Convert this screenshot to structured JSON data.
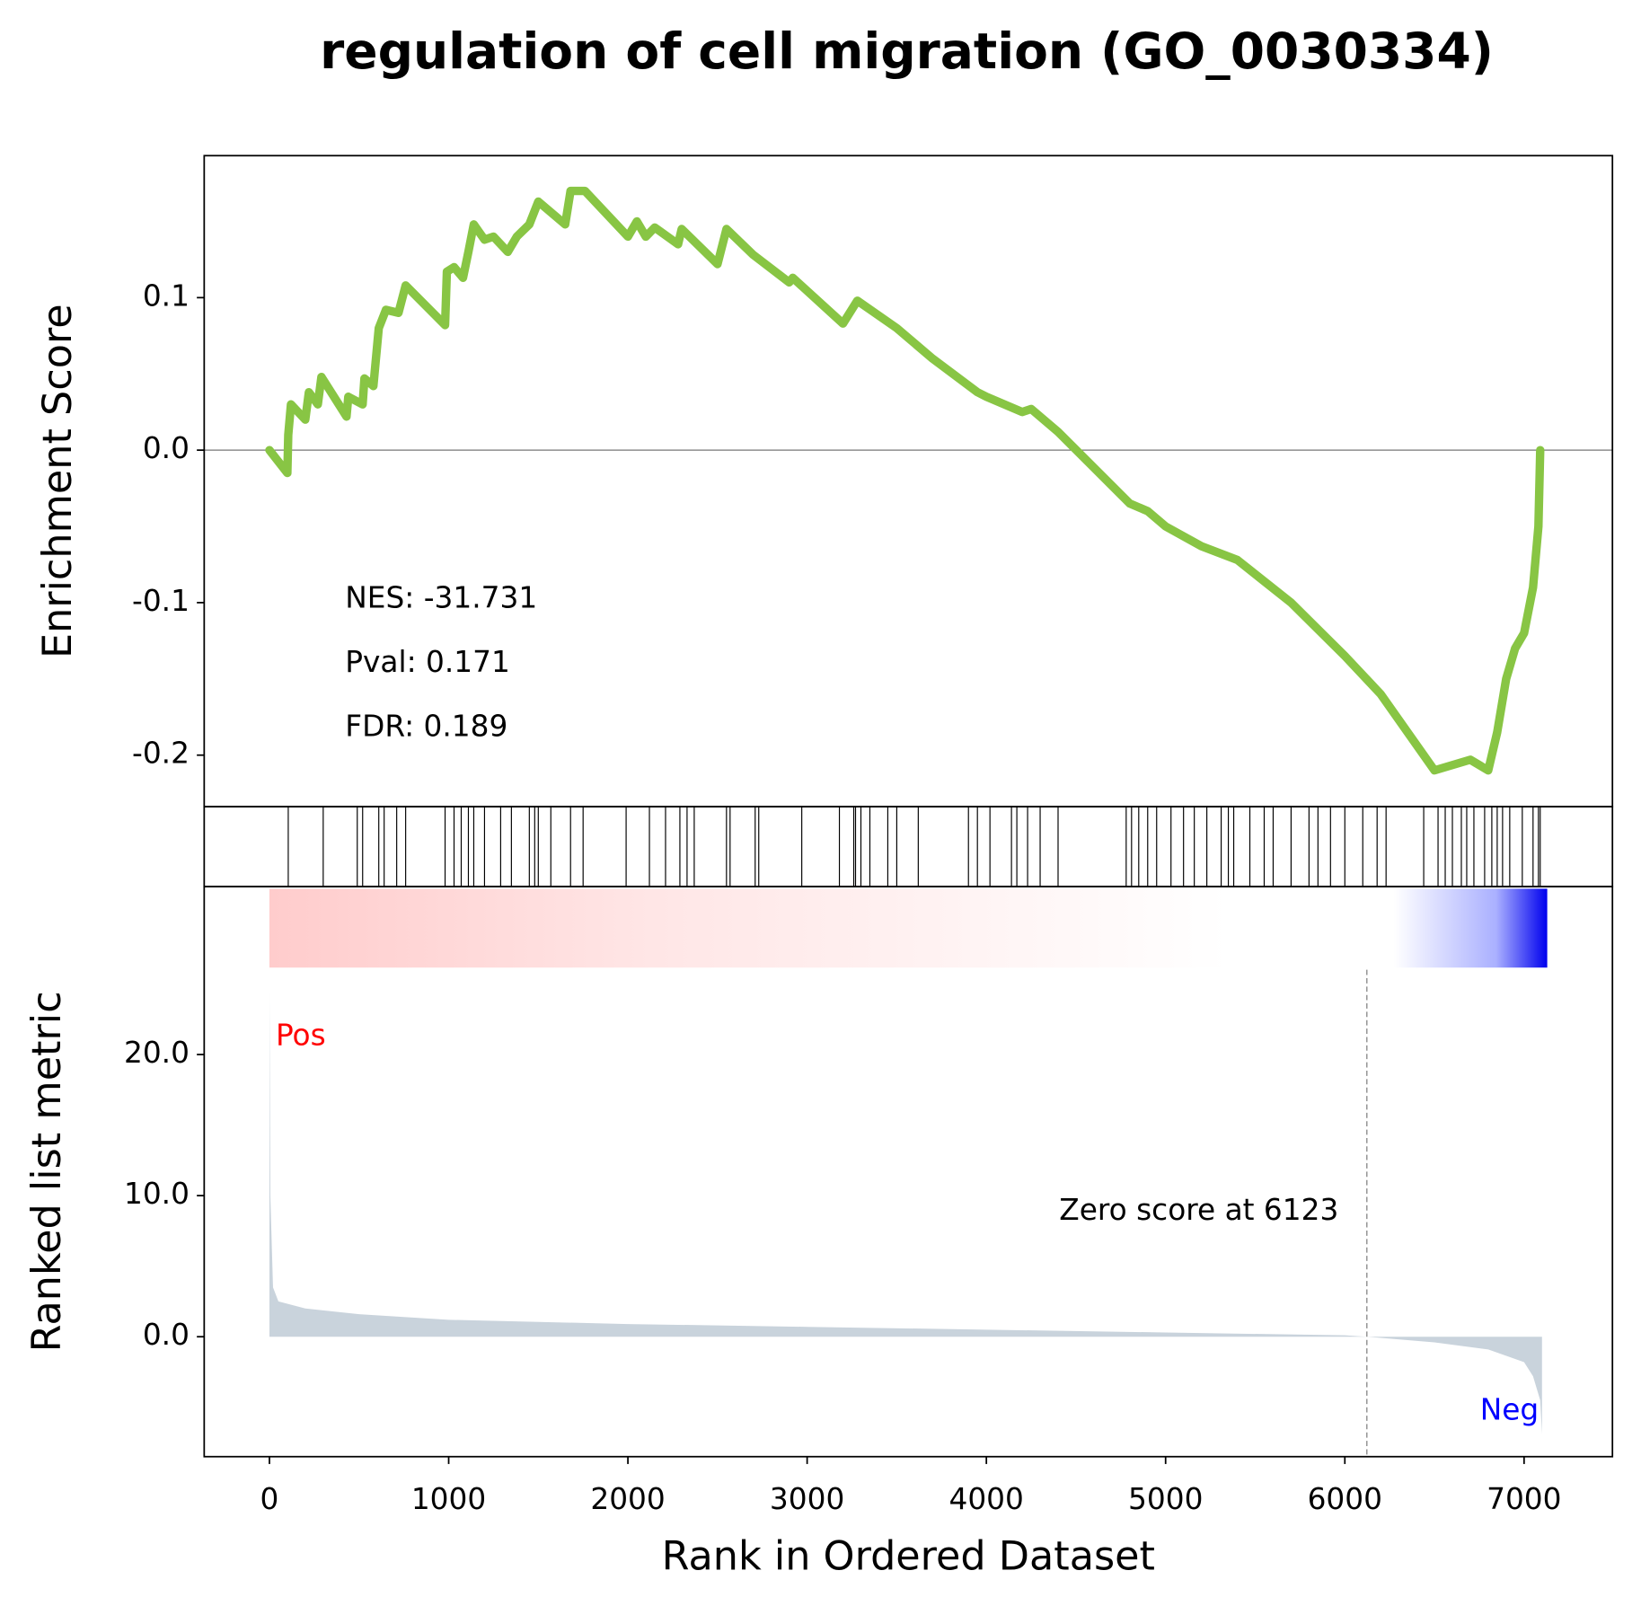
{
  "chart_data": [
    {
      "type": "line",
      "title": "regulation of cell migration (GO_0030334)",
      "ylabel": "Enrichment Score",
      "color": "#88c544",
      "annotations": [
        "NES: -31.731",
        "Pval: 0.171",
        "FDR: 0.189"
      ],
      "xlim": [
        -364,
        7493
      ],
      "ylim": [
        -0.2338,
        0.1931
      ],
      "yticks": [
        -0.2,
        -0.1,
        {
          "value": 0,
          "label": "0.0"
        },
        0.1
      ],
      "x": [
        0,
        100,
        105,
        120,
        200,
        220,
        270,
        290,
        430,
        440,
        520,
        530,
        580,
        610,
        650,
        720,
        760,
        980,
        990,
        1030,
        1080,
        1110,
        1140,
        1200,
        1250,
        1330,
        1380,
        1450,
        1500,
        1650,
        1680,
        1760,
        2000,
        2050,
        2100,
        2150,
        2280,
        2300,
        2500,
        2550,
        2700,
        2900,
        2920,
        3200,
        3280,
        3500,
        3700,
        3950,
        4000,
        4200,
        4250,
        4400,
        4800,
        4900,
        5000,
        5200,
        5400,
        5700,
        6000,
        6200,
        6500,
        6700,
        6800,
        6850,
        6900,
        6950,
        7000,
        7050,
        7080,
        7090
      ],
      "values": [
        0.0,
        -0.015,
        0.01,
        0.03,
        0.02,
        0.038,
        0.03,
        0.048,
        0.022,
        0.035,
        0.03,
        0.047,
        0.042,
        0.08,
        0.092,
        0.09,
        0.108,
        0.082,
        0.117,
        0.12,
        0.113,
        0.13,
        0.148,
        0.138,
        0.14,
        0.13,
        0.14,
        0.148,
        0.163,
        0.148,
        0.17,
        0.17,
        0.14,
        0.15,
        0.14,
        0.146,
        0.135,
        0.145,
        0.122,
        0.145,
        0.128,
        0.11,
        0.113,
        0.083,
        0.098,
        0.08,
        0.06,
        0.038,
        0.035,
        0.025,
        0.027,
        0.012,
        -0.035,
        -0.04,
        -0.05,
        -0.063,
        -0.072,
        -0.1,
        -0.135,
        -0.16,
        -0.21,
        -0.203,
        -0.21,
        -0.185,
        -0.15,
        -0.13,
        -0.12,
        -0.09,
        -0.05,
        0.0
      ]
    },
    {
      "type": "rug",
      "xlim": [
        -364,
        7493
      ],
      "x": [
        105,
        300,
        490,
        520,
        610,
        640,
        710,
        760,
        980,
        1030,
        1070,
        1110,
        1140,
        1200,
        1290,
        1350,
        1450,
        1480,
        1500,
        1570,
        1680,
        1750,
        1990,
        2120,
        2210,
        2290,
        2330,
        2370,
        2550,
        2570,
        2710,
        2730,
        2970,
        3180,
        3260,
        3270,
        3300,
        3350,
        3450,
        3500,
        3620,
        3900,
        3950,
        4020,
        4140,
        4170,
        4230,
        4300,
        4400,
        4780,
        4810,
        4850,
        4900,
        4950,
        5030,
        5100,
        5160,
        5230,
        5310,
        5350,
        5380,
        5470,
        5550,
        5600,
        5700,
        5800,
        5850,
        5920,
        6000,
        6100,
        6180,
        6230,
        6440,
        6520,
        6560,
        6600,
        6650,
        6680,
        6720,
        6780,
        6820,
        6850,
        6880,
        6920,
        6990,
        7050,
        7080,
        7090
      ]
    },
    {
      "type": "area",
      "ylabel": "Ranked list metric",
      "xlabel": "Rank in Ordered Dataset",
      "color": "#c9d3dc",
      "pos_label": "Pos",
      "neg_label": "Neg",
      "zero_text": "Zero score at 6123",
      "zero_rank": 6123,
      "xlim": [
        -364,
        7493
      ],
      "ylim": [
        -8.5,
        31.9
      ],
      "xticks": [
        0,
        1000,
        2000,
        3000,
        4000,
        5000,
        6000,
        7000
      ],
      "yticks": [
        {
          "value": 0,
          "label": "0.0"
        },
        {
          "value": 10,
          "label": "10.0"
        },
        {
          "value": 20,
          "label": "20.0"
        }
      ],
      "x": [
        0,
        5,
        20,
        50,
        200,
        500,
        1000,
        2000,
        3000,
        4000,
        5000,
        6000,
        6123,
        6500,
        6800,
        7000,
        7050,
        7090,
        7100
      ],
      "values": [
        24.5,
        10,
        3.5,
        2.5,
        2.0,
        1.6,
        1.2,
        0.9,
        0.7,
        0.5,
        0.3,
        0.1,
        0,
        -0.4,
        -0.9,
        -1.8,
        -2.8,
        -4.5,
        -6.9
      ]
    }
  ]
}
